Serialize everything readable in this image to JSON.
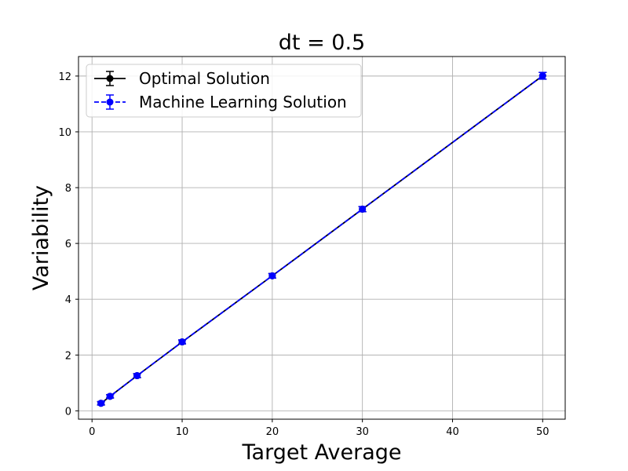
{
  "chart_data": {
    "type": "line",
    "title": "dt = 0.5",
    "xlabel": "Target Average",
    "ylabel": "Variability",
    "xlim": [
      -1.5,
      52.5
    ],
    "ylim": [
      -0.3,
      12.7
    ],
    "xticks": [
      0,
      10,
      20,
      30,
      40,
      50
    ],
    "yticks": [
      0,
      2,
      4,
      6,
      8,
      10,
      12
    ],
    "grid": true,
    "legend_position": "top-left",
    "series": [
      {
        "name": "Optimal Solution",
        "color": "#000000",
        "line_style": "solid",
        "marker": "circle",
        "x": [
          1,
          2,
          5,
          10,
          20,
          30,
          50
        ],
        "y": [
          0.27,
          0.52,
          1.26,
          2.47,
          4.84,
          7.23,
          12.01
        ],
        "yerr": [
          0.06,
          0.06,
          0.07,
          0.07,
          0.08,
          0.09,
          0.12
        ]
      },
      {
        "name": "Machine Learning Solution",
        "color": "#0000ff",
        "line_style": "dashed",
        "marker": "circle",
        "x": [
          1,
          2,
          5,
          10,
          20,
          30,
          50
        ],
        "y": [
          0.27,
          0.52,
          1.26,
          2.47,
          4.84,
          7.23,
          12.01
        ],
        "yerr": [
          0.06,
          0.06,
          0.07,
          0.07,
          0.08,
          0.09,
          0.12
        ]
      }
    ]
  }
}
